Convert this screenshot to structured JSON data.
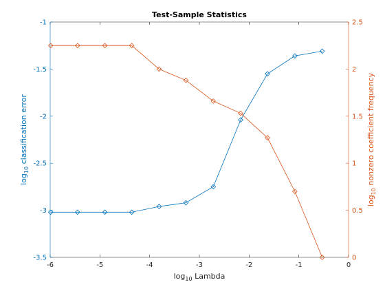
{
  "chart_data": {
    "type": "line",
    "title": "Test-Sample Statistics",
    "xlabel": "Lambda",
    "xlabel_prefix": "log",
    "xlabel_sub": "10",
    "xlim": [
      -6,
      0
    ],
    "xticks": [
      -6,
      -5,
      -4,
      -3,
      -2,
      -1,
      0
    ],
    "left_axis": {
      "label": "classification error",
      "label_prefix": "log",
      "label_sub": "10",
      "ylim": [
        -3.5,
        -1
      ],
      "yticks": [
        -3.5,
        -3,
        -2.5,
        -2,
        -1.5,
        -1
      ],
      "color": "#0072BD"
    },
    "right_axis": {
      "label": "nonzero coefficient frequency",
      "label_prefix": "log",
      "label_sub": "10",
      "ylim": [
        0,
        2.5
      ],
      "yticks": [
        0,
        0.5,
        1,
        1.5,
        2,
        2.5
      ],
      "color": "#D95319"
    },
    "x": [
      -5.99,
      -5.45,
      -4.9,
      -4.36,
      -3.81,
      -3.27,
      -2.72,
      -2.17,
      -1.63,
      -1.08,
      -0.53
    ],
    "series": [
      {
        "axis": "left",
        "color": "#0072BD",
        "marker": "diamond",
        "values": [
          -3.02,
          -3.02,
          -3.02,
          -3.02,
          -2.96,
          -2.92,
          -2.75,
          -2.04,
          -1.55,
          -1.36,
          -1.31
        ]
      },
      {
        "axis": "right",
        "color": "#D95319",
        "marker": "diamond",
        "values": [
          2.25,
          2.25,
          2.25,
          2.25,
          2.0,
          1.88,
          1.66,
          1.53,
          1.27,
          0.7,
          0.0
        ]
      }
    ],
    "grid": false
  }
}
